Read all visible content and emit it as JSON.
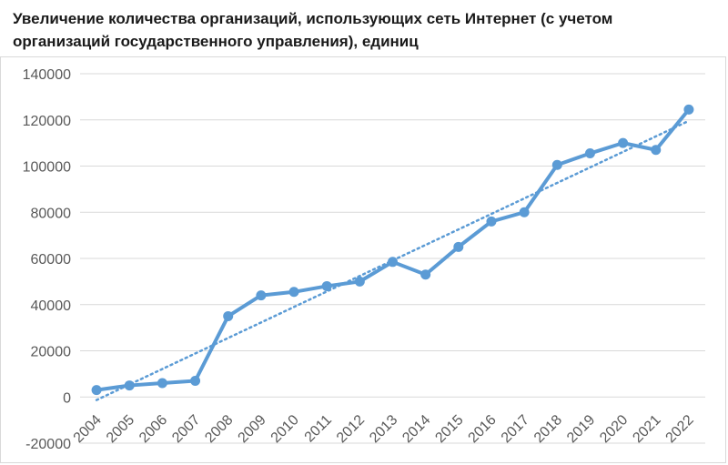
{
  "chart_data": {
    "type": "line",
    "title": "Увеличение количества организаций, использующих сеть Интернет (с учетом организаций государственного управления), единиц",
    "xlabel": "",
    "ylabel": "",
    "categories": [
      "2004",
      "2005",
      "2006",
      "2007",
      "2008",
      "2009",
      "2010",
      "2011",
      "2012",
      "2013",
      "2014",
      "2015",
      "2016",
      "2017",
      "2018",
      "2019",
      "2020",
      "2021",
      "2022"
    ],
    "series": [
      {
        "values": [
          3000,
          5000,
          6000,
          7000,
          35000,
          44000,
          45500,
          48000,
          50000,
          58500,
          53000,
          65000,
          76000,
          80000,
          100500,
          105500,
          110000,
          107000,
          124500
        ],
        "color": "#5b9bd5"
      }
    ],
    "trendline": {
      "type": "linear",
      "style": "dotted",
      "color": "#5b9bd5"
    },
    "ylim": [
      -20000,
      140000
    ],
    "yticks": [
      -20000,
      0,
      20000,
      40000,
      60000,
      80000,
      100000,
      120000,
      140000
    ],
    "ytick_labels": [
      "-20000",
      "0",
      "20000",
      "40000",
      "60000",
      "80000",
      "100000",
      "120000",
      "140000"
    ],
    "grid": true,
    "legend": "none"
  }
}
